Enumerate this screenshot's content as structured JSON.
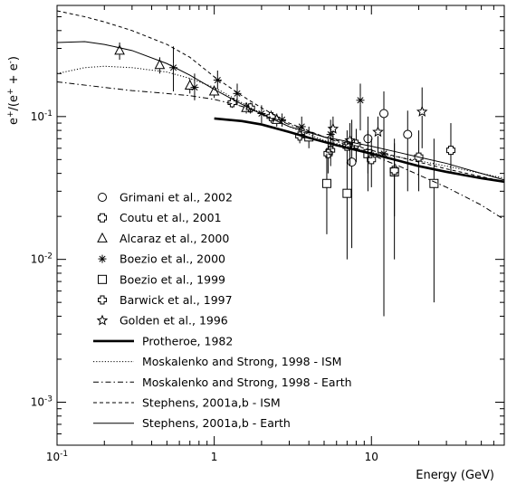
{
  "chart_data": {
    "type": "scatter",
    "xlabel": "Energy (GeV)",
    "ylabel": "e+/(e+ + e-)",
    "ylabel_parts": {
      "e1": "e",
      "sup1": "+",
      "mid": "/(e",
      "sup2": "+",
      "plus": " + e",
      "sup3": "-",
      "close": ")"
    },
    "x_scale": "log",
    "y_scale": "log",
    "xlim": [
      0.1,
      70
    ],
    "ylim": [
      0.0005,
      0.6
    ],
    "x_ticks": [
      {
        "value": 0.1,
        "label": "10",
        "sup": "-1"
      },
      {
        "value": 1,
        "label": "1",
        "sup": ""
      },
      {
        "value": 10,
        "label": "10",
        "sup": ""
      }
    ],
    "y_ticks": [
      {
        "value": 0.1,
        "label": "10",
        "sup": "-1"
      },
      {
        "value": 0.01,
        "label": "10",
        "sup": "-2"
      },
      {
        "value": 0.001,
        "label": "10",
        "sup": "-3"
      }
    ],
    "grid": false,
    "legend_position": "left",
    "series": [
      {
        "name": "Grimani et al., 2002",
        "kind": "points",
        "marker": "circle",
        "points": [
          {
            "x": 7.5,
            "y": 0.048,
            "ylo": 0.012,
            "yhi": 0.095
          },
          {
            "x": 9.5,
            "y": 0.07,
            "ylo": 0.04,
            "yhi": 0.1
          },
          {
            "x": 12.0,
            "y": 0.105,
            "ylo": 0.004,
            "yhi": 0.15
          },
          {
            "x": 17.0,
            "y": 0.075,
            "ylo": 0.03,
            "yhi": 0.11
          }
        ]
      },
      {
        "name": "Coutu et al., 2001",
        "kind": "points",
        "marker": "cross",
        "points": [
          {
            "x": 5.3,
            "y": 0.055,
            "ylo": 0.04,
            "yhi": 0.07
          },
          {
            "x": 7.0,
            "y": 0.062,
            "ylo": 0.047,
            "yhi": 0.08
          },
          {
            "x": 10.0,
            "y": 0.05,
            "ylo": 0.032,
            "yhi": 0.07
          },
          {
            "x": 14.0,
            "y": 0.042,
            "ylo": 0.02,
            "yhi": 0.07
          },
          {
            "x": 20.0,
            "y": 0.052,
            "ylo": 0.03,
            "yhi": 0.08
          },
          {
            "x": 32.0,
            "y": 0.058,
            "ylo": 0.04,
            "yhi": 0.09
          }
        ]
      },
      {
        "name": "Alcaraz et al., 2000",
        "kind": "points",
        "marker": "triangle",
        "points": [
          {
            "x": 0.25,
            "y": 0.29,
            "ylo": 0.25,
            "yhi": 0.33
          },
          {
            "x": 0.45,
            "y": 0.23,
            "ylo": 0.2,
            "yhi": 0.26
          },
          {
            "x": 0.7,
            "y": 0.165,
            "ylo": 0.145,
            "yhi": 0.185
          },
          {
            "x": 1.0,
            "y": 0.15,
            "ylo": 0.135,
            "yhi": 0.165
          },
          {
            "x": 1.6,
            "y": 0.115,
            "ylo": 0.105,
            "yhi": 0.125
          },
          {
            "x": 2.5,
            "y": 0.095,
            "ylo": 0.085,
            "yhi": 0.105
          }
        ]
      },
      {
        "name": "Boezio et al., 2000",
        "kind": "points",
        "marker": "asterisk",
        "points": [
          {
            "x": 0.55,
            "y": 0.22,
            "ylo": 0.15,
            "yhi": 0.31
          },
          {
            "x": 0.75,
            "y": 0.16,
            "ylo": 0.13,
            "yhi": 0.2
          },
          {
            "x": 1.05,
            "y": 0.18,
            "ylo": 0.155,
            "yhi": 0.21
          },
          {
            "x": 1.4,
            "y": 0.145,
            "ylo": 0.12,
            "yhi": 0.17
          },
          {
            "x": 2.0,
            "y": 0.105,
            "ylo": 0.09,
            "yhi": 0.12
          },
          {
            "x": 2.7,
            "y": 0.095,
            "ylo": 0.085,
            "yhi": 0.105
          },
          {
            "x": 3.6,
            "y": 0.085,
            "ylo": 0.07,
            "yhi": 0.1
          },
          {
            "x": 5.5,
            "y": 0.075,
            "ylo": 0.055,
            "yhi": 0.095
          },
          {
            "x": 8.5,
            "y": 0.13,
            "ylo": 0.08,
            "yhi": 0.17
          },
          {
            "x": 12.0,
            "y": 0.055,
            "ylo": 0.02,
            "yhi": 0.09
          }
        ]
      },
      {
        "name": "Boezio et al., 1999",
        "kind": "points",
        "marker": "square",
        "points": [
          {
            "x": 4.0,
            "y": 0.072,
            "ylo": 0.06,
            "yhi": 0.085
          },
          {
            "x": 5.2,
            "y": 0.034,
            "ylo": 0.015,
            "yhi": 0.055
          },
          {
            "x": 7.0,
            "y": 0.029,
            "ylo": 0.01,
            "yhi": 0.048
          },
          {
            "x": 9.5,
            "y": 0.055,
            "ylo": 0.03,
            "yhi": 0.08
          },
          {
            "x": 14.0,
            "y": 0.041,
            "ylo": 0.01,
            "yhi": 0.065
          },
          {
            "x": 25.0,
            "y": 0.034,
            "ylo": 0.005,
            "yhi": 0.07
          }
        ]
      },
      {
        "name": "Barwick et al., 1997",
        "kind": "points",
        "marker": "plus",
        "points": [
          {
            "x": 1.3,
            "y": 0.125,
            "ylo": 0.115,
            "yhi": 0.135
          },
          {
            "x": 1.7,
            "y": 0.115,
            "ylo": 0.105,
            "yhi": 0.125
          },
          {
            "x": 2.3,
            "y": 0.1,
            "ylo": 0.09,
            "yhi": 0.11
          },
          {
            "x": 3.5,
            "y": 0.073,
            "ylo": 0.065,
            "yhi": 0.082
          },
          {
            "x": 5.5,
            "y": 0.058,
            "ylo": 0.045,
            "yhi": 0.072
          },
          {
            "x": 8.0,
            "y": 0.064,
            "ylo": 0.048,
            "yhi": 0.082
          }
        ]
      },
      {
        "name": "Golden et al., 1996",
        "kind": "points",
        "marker": "star",
        "points": [
          {
            "x": 5.7,
            "y": 0.082,
            "ylo": 0.06,
            "yhi": 0.1
          },
          {
            "x": 7.3,
            "y": 0.068,
            "ylo": 0.045,
            "yhi": 0.09
          },
          {
            "x": 11.0,
            "y": 0.078,
            "ylo": 0.055,
            "yhi": 0.1
          },
          {
            "x": 21.0,
            "y": 0.108,
            "ylo": 0.06,
            "yhi": 0.16
          }
        ]
      },
      {
        "name": "Protheroe, 1982",
        "kind": "line",
        "style": "thick",
        "x": [
          1.0,
          1.5,
          2.0,
          3.0,
          4.0,
          6.0,
          10.0,
          15.0,
          20.0,
          30.0,
          50.0,
          70.0
        ],
        "y": [
          0.097,
          0.093,
          0.088,
          0.078,
          0.071,
          0.063,
          0.055,
          0.049,
          0.045,
          0.041,
          0.037,
          0.035
        ]
      },
      {
        "name": "Moskalenko and Strong, 1998 - ISM",
        "kind": "line",
        "style": "dotted",
        "x": [
          0.1,
          0.15,
          0.2,
          0.3,
          0.5,
          0.7,
          1.0,
          1.5,
          2.0,
          3.0,
          5.0,
          7.0,
          10.0,
          15.0,
          20.0,
          30.0,
          50.0,
          70.0
        ],
        "y": [
          0.2,
          0.22,
          0.225,
          0.22,
          0.205,
          0.185,
          0.16,
          0.125,
          0.105,
          0.085,
          0.068,
          0.062,
          0.056,
          0.052,
          0.049,
          0.045,
          0.04,
          0.037
        ]
      },
      {
        "name": "Moskalenko and Strong, 1998 - Earth",
        "kind": "line",
        "style": "dashdot",
        "x": [
          0.1,
          0.2,
          0.3,
          0.5,
          0.7,
          1.0,
          1.5,
          2.0,
          3.0,
          5.0,
          7.0,
          10.0,
          15.0,
          20.0,
          30.0,
          50.0,
          70.0
        ],
        "y": [
          0.175,
          0.16,
          0.152,
          0.145,
          0.14,
          0.132,
          0.118,
          0.105,
          0.088,
          0.072,
          0.063,
          0.054,
          0.045,
          0.039,
          0.032,
          0.024,
          0.019
        ]
      },
      {
        "name": "Stephens, 2001a,b - ISM",
        "kind": "line",
        "style": "dashed",
        "x": [
          0.1,
          0.15,
          0.2,
          0.3,
          0.5,
          0.7,
          1.0,
          1.5,
          2.0,
          3.0,
          5.0,
          7.0,
          10.0,
          15.0,
          20.0,
          30.0,
          50.0,
          70.0
        ],
        "y": [
          0.55,
          0.5,
          0.46,
          0.4,
          0.32,
          0.26,
          0.19,
          0.14,
          0.115,
          0.09,
          0.072,
          0.065,
          0.058,
          0.052,
          0.048,
          0.043,
          0.038,
          0.035
        ]
      },
      {
        "name": "Stephens, 2001a,b - Earth",
        "kind": "line",
        "style": "solid",
        "x": [
          0.1,
          0.15,
          0.2,
          0.3,
          0.5,
          0.7,
          1.0,
          1.5,
          2.0,
          3.0,
          5.0,
          7.0,
          10.0,
          15.0,
          20.0,
          30.0,
          50.0,
          70.0
        ],
        "y": [
          0.33,
          0.335,
          0.32,
          0.29,
          0.235,
          0.195,
          0.155,
          0.122,
          0.104,
          0.085,
          0.072,
          0.067,
          0.062,
          0.056,
          0.052,
          0.047,
          0.04,
          0.036
        ]
      }
    ]
  }
}
